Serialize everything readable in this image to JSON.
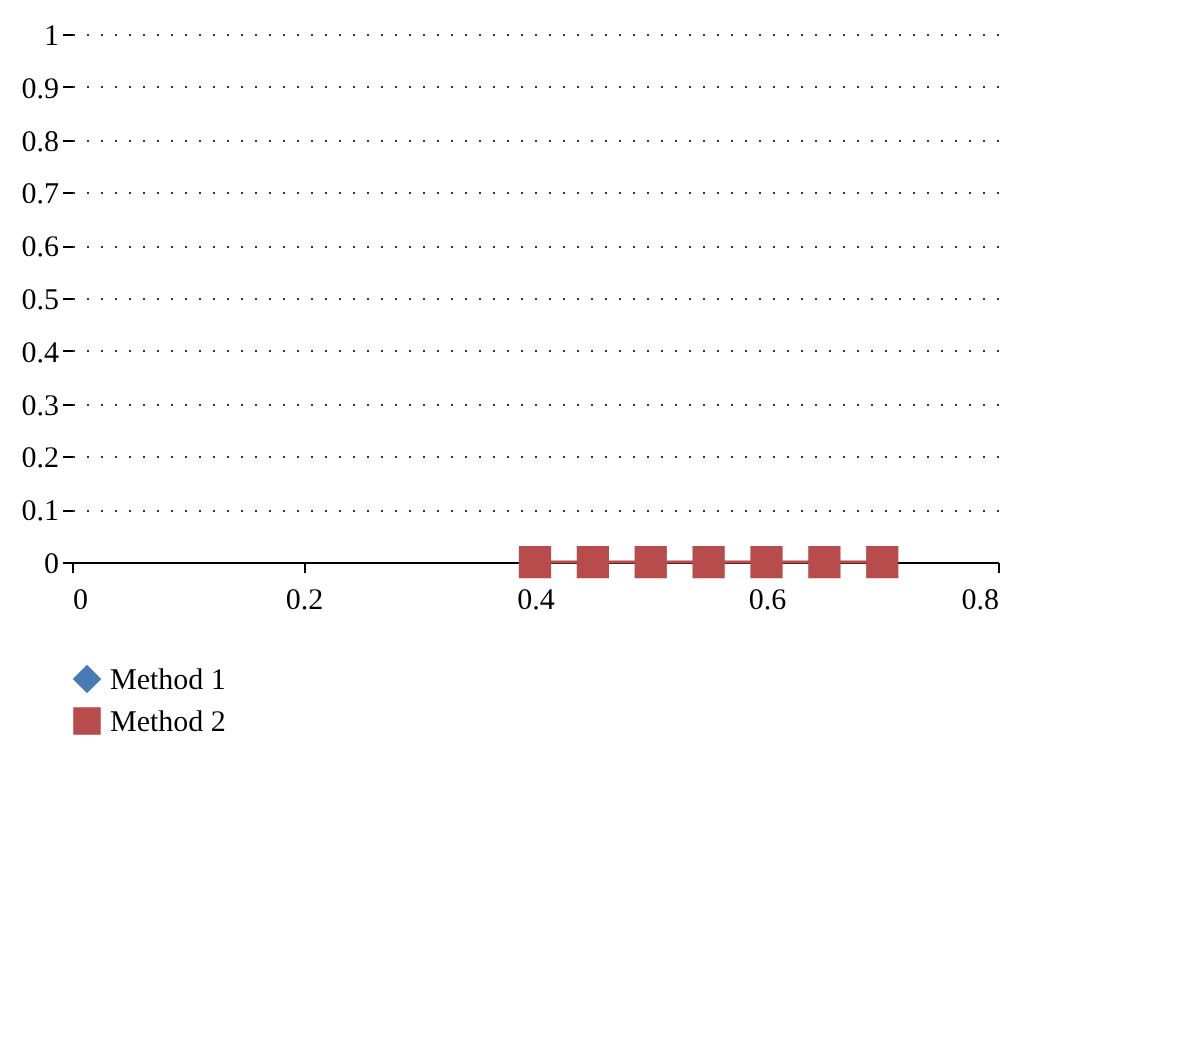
{
  "chart_data": {
    "type": "line",
    "x": [
      0.4,
      0.45,
      0.5,
      0.55,
      0.6,
      0.65,
      0.7
    ],
    "series": [
      {
        "name": "Method 1",
        "color": "#4a7ab5",
        "marker": "diamond",
        "values": [
          null,
          null,
          null,
          null,
          null,
          null,
          null
        ]
      },
      {
        "name": "Method 2",
        "color": "#b84c4c",
        "marker": "square",
        "values": [
          0,
          0,
          0,
          0,
          0,
          0,
          0
        ]
      }
    ],
    "xlim": [
      0,
      0.8
    ],
    "xticks": [
      0,
      0.2,
      0.4,
      0.6,
      0.8
    ],
    "ylim": [
      0,
      1
    ],
    "yticks": [
      0,
      0.1,
      0.2,
      0.3,
      0.4,
      0.5,
      0.6,
      0.7,
      0.8,
      0.9,
      1
    ],
    "grid": "y",
    "legend": "bottom left",
    "line_style": "solid"
  }
}
